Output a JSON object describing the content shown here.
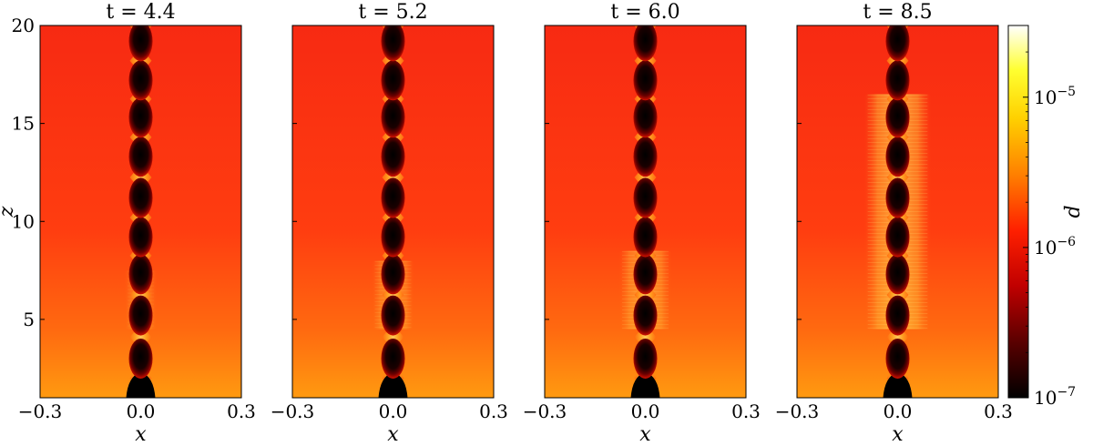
{
  "chart_data": {
    "type": "heatmap",
    "quantity": "d",
    "colormap": "hot",
    "colorbar": {
      "label": "d",
      "scale": "log",
      "range": [
        1e-07,
        3e-05
      ],
      "major_ticks": [
        {
          "value": 1e-07,
          "base": "10",
          "exp": "−7"
        },
        {
          "value": 1e-06,
          "base": "10",
          "exp": "−6"
        },
        {
          "value": 1e-05,
          "base": "10",
          "exp": "−5"
        }
      ]
    },
    "xlabel": "x",
    "ylabel": "z",
    "xlim": [
      -0.3,
      0.3
    ],
    "ylim": [
      1,
      20
    ],
    "xticks": [
      -0.3,
      0.0,
      0.3
    ],
    "xtick_labels": [
      "−0.3",
      "0.0",
      "0.3"
    ],
    "yticks": [
      5,
      10,
      15,
      20
    ],
    "ytick_labels": [
      "5",
      "10",
      "15",
      "20"
    ],
    "panels": [
      {
        "title_var": "t",
        "title_val": "4.4",
        "t": 4.4,
        "jet_nodes_z": [
          1.0,
          3.0,
          5.2,
          7.3,
          9.2,
          11.2,
          13.3,
          15.3,
          17.2,
          19.2
        ],
        "disturbed_region": {
          "z_range": [
            4.5,
            7.5
          ],
          "x_halfwidth": 0.05,
          "intensity": 0.45
        }
      },
      {
        "title_var": "t",
        "title_val": "5.2",
        "t": 5.2,
        "jet_nodes_z": [
          1.0,
          3.0,
          5.2,
          7.3,
          9.2,
          11.2,
          13.3,
          15.3,
          17.2,
          19.2
        ],
        "disturbed_region": {
          "z_range": [
            4.5,
            8.0
          ],
          "x_halfwidth": 0.065,
          "intensity": 0.65
        }
      },
      {
        "title_var": "t",
        "title_val": "6.0",
        "t": 6.0,
        "jet_nodes_z": [
          1.0,
          3.0,
          5.2,
          7.3,
          9.2,
          11.2,
          13.3,
          15.3,
          17.2,
          19.2
        ],
        "disturbed_region": {
          "z_range": [
            4.5,
            8.5
          ],
          "x_halfwidth": 0.08,
          "intensity": 0.8
        }
      },
      {
        "title_var": "t",
        "title_val": "8.5",
        "t": 8.5,
        "jet_nodes_z": [
          1.0,
          3.0,
          5.2,
          7.3,
          9.2,
          11.2,
          13.3,
          15.3,
          17.2,
          19.2
        ],
        "disturbed_region": {
          "z_range": [
            4.5,
            16.5
          ],
          "x_halfwidth": 0.1,
          "intensity": 1.0
        }
      }
    ]
  }
}
